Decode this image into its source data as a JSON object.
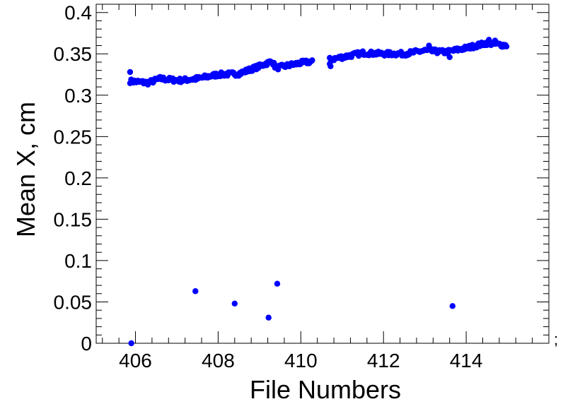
{
  "chart_data": {
    "type": "scatter",
    "xlabel": "File Numbers",
    "ylabel": "Mean X, cm",
    "xlim": [
      405.05,
      416.0
    ],
    "ylim": [
      0,
      0.41
    ],
    "xticks_major": [
      406,
      408,
      410,
      412,
      414
    ],
    "yticks_major": [
      0,
      0.05,
      0.1,
      0.15,
      0.2,
      0.25,
      0.3,
      0.35,
      0.4
    ],
    "xtick_labels": [
      "406",
      "408",
      "410",
      "412",
      "414"
    ],
    "ytick_labels": [
      "0",
      "0.05",
      "0.1",
      "0.15",
      "0.2",
      "0.25",
      "0.3",
      "0.35",
      "0.4"
    ],
    "grid": false,
    "marker_color": "#0000ff",
    "trend_segments": [
      {
        "x": [
          405.87,
          406.3,
          406.6,
          407.0,
          407.1,
          407.5,
          408.0,
          408.5,
          409.0,
          409.3,
          409.4,
          409.7,
          410.0,
          410.3
        ],
        "y": [
          0.317,
          0.315,
          0.32,
          0.318,
          0.318,
          0.32,
          0.325,
          0.326,
          0.335,
          0.341,
          0.333,
          0.336,
          0.339,
          0.341
        ]
      },
      {
        "x": [
          410.7,
          411.0,
          411.5,
          412.0,
          412.5,
          413.0,
          413.5,
          414.0,
          414.5,
          415.0
        ],
        "y": [
          0.343,
          0.346,
          0.351,
          0.35,
          0.35,
          0.354,
          0.352,
          0.357,
          0.363,
          0.36
        ]
      }
    ],
    "points": [
      {
        "x": 405.87,
        "y": 0.328
      },
      {
        "x": 407.45,
        "y": 0.063
      },
      {
        "x": 408.4,
        "y": 0.048
      },
      {
        "x": 409.22,
        "y": 0.031
      },
      {
        "x": 409.43,
        "y": 0.072
      },
      {
        "x": 413.67,
        "y": 0.045
      },
      {
        "x": 405.9,
        "y": 0.0
      },
      {
        "x": 410.7,
        "y": 0.338
      },
      {
        "x": 410.72,
        "y": 0.335
      },
      {
        "x": 413.1,
        "y": 0.36
      },
      {
        "x": 413.6,
        "y": 0.346
      },
      {
        "x": 414.55,
        "y": 0.367
      },
      {
        "x": 414.7,
        "y": 0.366
      }
    ],
    "stray_mark": ";"
  }
}
